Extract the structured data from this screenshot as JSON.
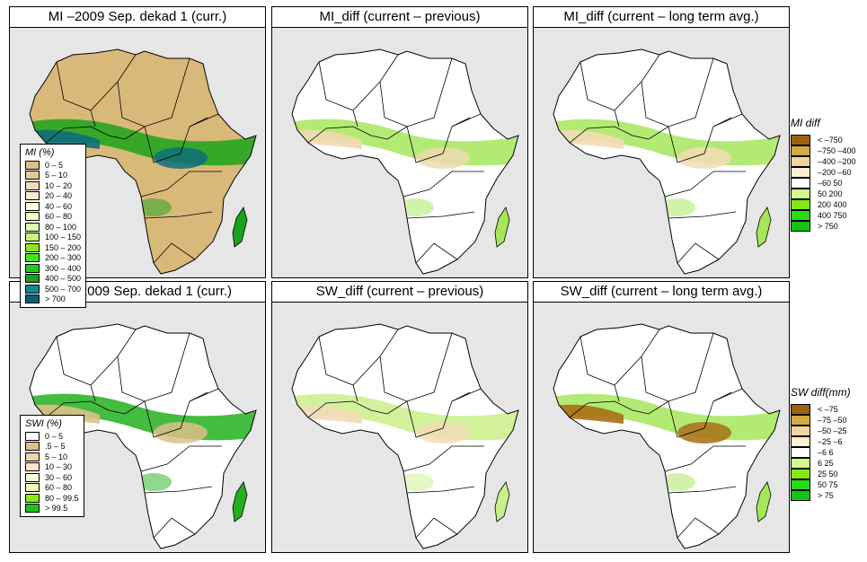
{
  "panels": [
    {
      "id": "mi-curr",
      "title": "MI –2009 Sep. dekad 1 (curr.)",
      "fill": "#d9b97a",
      "accent": "#1aa31a",
      "deep": "#0e6f7a"
    },
    {
      "id": "mi-diff-prev",
      "title": "MI_diff (current – previous)",
      "fill": "#ffffff",
      "accent": "#a6e65a",
      "deep": "#efd9b0"
    },
    {
      "id": "mi-diff-lta",
      "title": "MI_diff (current – long term avg.)",
      "fill": "#ffffff",
      "accent": "#a6e65a",
      "deep": "#f3dcb6"
    },
    {
      "id": "swi-curr",
      "title": "SWI –2009 Sep. dekad 1 (curr.)",
      "fill": "#ffffff",
      "accent": "#22b01e",
      "deep": "#dcc08a"
    },
    {
      "id": "sw-diff-prev",
      "title": "SW_diff (current – previous)",
      "fill": "#ffffff",
      "accent": "#c9f08a",
      "deep": "#f2dcb7"
    },
    {
      "id": "sw-diff-lta",
      "title": "SW_diff (current – long term avg.)",
      "fill": "#ffffff",
      "accent": "#a6e65a",
      "deep": "#a86e16"
    }
  ],
  "legends": {
    "mi": {
      "title": "MI (%)",
      "items": [
        {
          "label": "0 – 5",
          "color": "#dcc08a"
        },
        {
          "label": "5 – 10",
          "color": "#e6c994"
        },
        {
          "label": "10 – 20",
          "color": "#f0dcbc"
        },
        {
          "label": "20 – 40",
          "color": "#fbead2"
        },
        {
          "label": "40 – 60",
          "color": "#ffffe0"
        },
        {
          "label": "60 – 80",
          "color": "#f2ffc0"
        },
        {
          "label": "80 – 100",
          "color": "#dfffb0"
        },
        {
          "label": "100 – 150",
          "color": "#c4f57e"
        },
        {
          "label": "150 – 200",
          "color": "#8ae81a"
        },
        {
          "label": "200 – 300",
          "color": "#3cea1a"
        },
        {
          "label": "300 – 400",
          "color": "#22c71e"
        },
        {
          "label": "400 – 500",
          "color": "#17a11a"
        },
        {
          "label": "500 – 700",
          "color": "#108a8a"
        },
        {
          "label": "> 700",
          "color": "#0a5f78"
        }
      ]
    },
    "swi": {
      "title": "SWI (%)",
      "items": [
        {
          "label": "0 – 5",
          "color": "#ffffff"
        },
        {
          "label": ".5 – 5",
          "color": "#dcc08a"
        },
        {
          "label": "5 – 10",
          "color": "#f0d4a8"
        },
        {
          "label": "10 – 30",
          "color": "#fde3c8"
        },
        {
          "label": "30 – 60",
          "color": "#ffffe0"
        },
        {
          "label": "60 – 80",
          "color": "#eeffb4"
        },
        {
          "label": "80 – 99.5",
          "color": "#86ec12"
        },
        {
          "label": "> 99.5",
          "color": "#1fbf1c"
        }
      ]
    },
    "mi_diff": {
      "title": "MI diff",
      "items": [
        {
          "label": "< –750",
          "color": "#9c620c"
        },
        {
          "label": "–750 –400",
          "color": "#d3aa44"
        },
        {
          "label": "–400 –200",
          "color": "#f1d4a0"
        },
        {
          "label": "–200  –60",
          "color": "#fdefd4"
        },
        {
          "label": "–60  50",
          "color": "#ffffff"
        },
        {
          "label": "50  200",
          "color": "#d2fb8c"
        },
        {
          "label": "200  400",
          "color": "#82ea12"
        },
        {
          "label": "400  750",
          "color": "#2bd91b"
        },
        {
          "label": "> 750",
          "color": "#16c216"
        }
      ]
    },
    "sw_diff": {
      "title": "SW diff(mm)",
      "items": [
        {
          "label": "< –75",
          "color": "#9c620c"
        },
        {
          "label": "–75 –50",
          "color": "#d3aa44"
        },
        {
          "label": "–50 –25",
          "color": "#f1d4a0"
        },
        {
          "label": "–25  –6",
          "color": "#fdefd4"
        },
        {
          "label": "–6  6",
          "color": "#ffffff"
        },
        {
          "label": "6  25",
          "color": "#d2fb8c"
        },
        {
          "label": "25  50",
          "color": "#82ea12"
        },
        {
          "label": "50  75",
          "color": "#2bd91b"
        },
        {
          "label": "> 75",
          "color": "#16c216"
        }
      ]
    }
  }
}
